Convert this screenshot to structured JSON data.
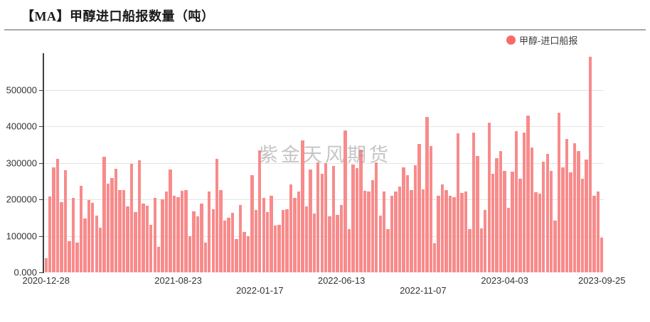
{
  "title": "【MA】甲醇进口船报数量（吨）",
  "legend": {
    "label": "甲醇-进口船报",
    "marker_color": "#fa6a6a"
  },
  "watermark": "紫金天风期货",
  "colors": {
    "bar": "#f88b8b",
    "grid": "#e3e3e3",
    "axis": "#3f3f3f",
    "text": "#333333",
    "title_rule": "#a8a8a8"
  },
  "chart_data": {
    "type": "bar",
    "title": "【MA】甲醇进口船报数量（吨）",
    "unit": "吨",
    "grid": true,
    "legend_position": "top-right",
    "y_axis": {
      "tick_labels": [
        "0.000",
        "100000",
        "200000",
        "300000",
        "400000",
        "500000"
      ],
      "ylim": [
        0,
        600000
      ]
    },
    "x_axis": {
      "tick_labels": [
        "2020-12-28",
        "2021-08-23",
        "2022-01-17",
        "2022-06-13",
        "2022-11-07",
        "2023-04-03",
        "2023-09-25"
      ],
      "tick_indices": [
        0,
        34,
        55,
        76,
        97,
        118,
        143
      ],
      "stagger_rows": [
        1,
        1,
        2,
        1,
        2,
        1,
        1
      ]
    },
    "series": [
      {
        "name": "甲醇-进口船报",
        "color": "#f88b8b",
        "values": [
          38000,
          207000,
          288000,
          310000,
          192000,
          279000,
          85000,
          203000,
          81000,
          237000,
          147000,
          198000,
          190000,
          156000,
          122000,
          316000,
          242000,
          259000,
          283000,
          226000,
          226000,
          181000,
          298000,
          165000,
          306000,
          189000,
          182000,
          131000,
          204000,
          69000,
          200000,
          221000,
          281000,
          210000,
          206000,
          223000,
          226000,
          99000,
          167000,
          154000,
          188000,
          81000,
          221000,
          173000,
          310000,
          226000,
          142000,
          149000,
          164000,
          92000,
          184000,
          111000,
          99000,
          266000,
          170000,
          334000,
          204000,
          166000,
          209000,
          128000,
          130000,
          171000,
          173000,
          241000,
          204000,
          222000,
          361000,
          181000,
          281000,
          162000,
          301000,
          270000,
          300000,
          154000,
          292000,
          157000,
          184000,
          389000,
          118000,
          295000,
          286000,
          335000,
          224000,
          221000,
          252000,
          301000,
          155000,
          221000,
          118000,
          210000,
          221000,
          235000,
          288000,
          267000,
          225000,
          293000,
          351000,
          228000,
          425000,
          345000,
          80000,
          209000,
          241000,
          225000,
          209000,
          206000,
          380000,
          218000,
          222000,
          118000,
          383000,
          319000,
          121000,
          170000,
          409000,
          270000,
          312000,
          332000,
          277000,
          177000,
          275000,
          387000,
          257000,
          382000,
          430000,
          341000,
          219000,
          215000,
          303000,
          325000,
          277000,
          141000,
          436000,
          288000,
          365000,
          273000,
          354000,
          332000,
          257000,
          309000,
          590000,
          210000,
          222000,
          96000
        ]
      }
    ]
  }
}
